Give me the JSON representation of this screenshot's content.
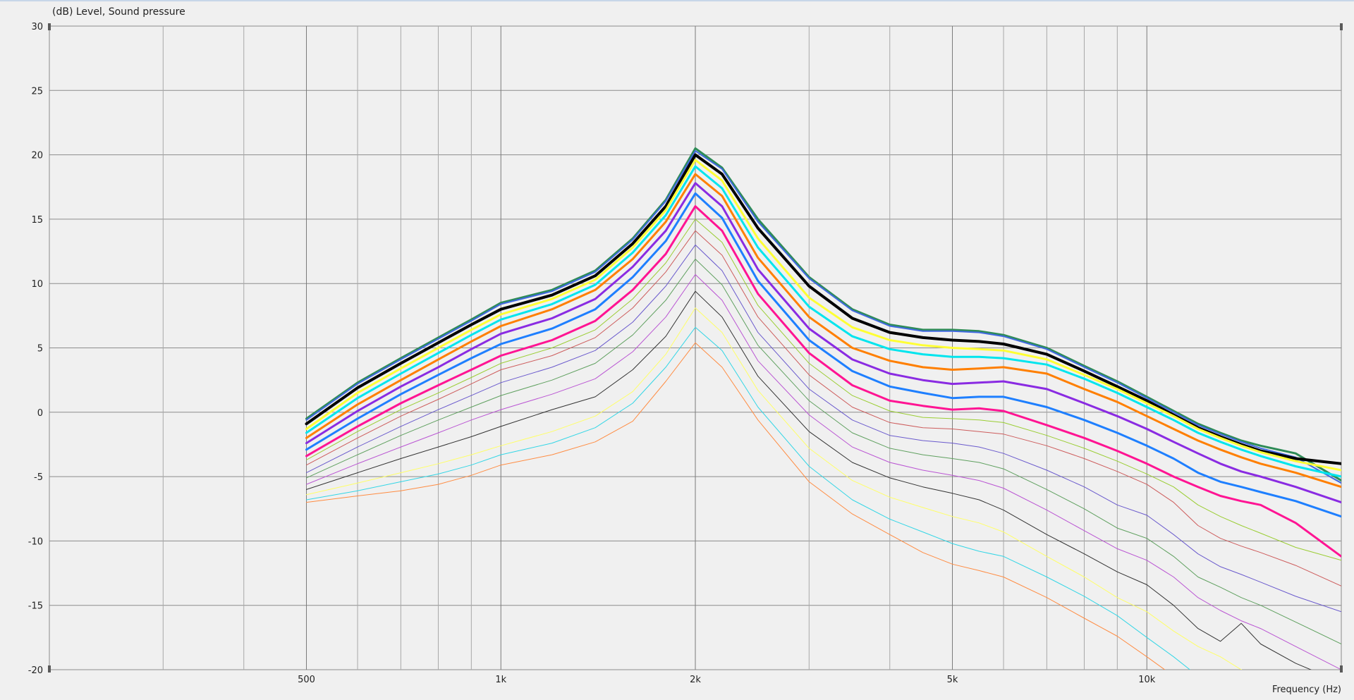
{
  "chart_data": {
    "type": "line",
    "title": "(dB)  Level, Sound pressure",
    "xlabel": "Frequency  (Hz)",
    "ylabel": "(dB)  Level, Sound pressure",
    "x_scale": "log",
    "xlim": [
      200,
      20000
    ],
    "ylim": [
      -20,
      30
    ],
    "y_ticks": [
      30,
      25,
      20,
      15,
      10,
      5,
      0,
      -5,
      -10,
      -15,
      -20
    ],
    "y_tick_labels": [
      "30",
      "25",
      "20",
      "15",
      "10",
      "5",
      "0",
      "-5",
      "-10",
      "-15",
      "-20"
    ],
    "x_major_ticks": [
      500,
      1000,
      2000,
      5000,
      10000
    ],
    "x_tick_labels": [
      "500",
      "1k",
      "2k",
      "5k",
      "10k"
    ],
    "x_minor_ticks": [
      300,
      400,
      600,
      700,
      800,
      900,
      3000,
      4000,
      6000,
      7000,
      8000,
      9000
    ],
    "grid": true,
    "x": [
      500,
      600,
      700,
      800,
      900,
      1000,
      1200,
      1400,
      1600,
      1800,
      2000,
      2200,
      2500,
      3000,
      3500,
      4000,
      4500,
      5000,
      5500,
      6000,
      7000,
      8000,
      9000,
      10000,
      11000,
      12000,
      13000,
      14000,
      15000,
      17000,
      20000
    ],
    "series": [
      {
        "color": "#2e8b57",
        "width": 3,
        "values": [
          -0.5,
          2.3,
          4.2,
          5.8,
          7.2,
          8.5,
          9.5,
          11.0,
          13.5,
          16.5,
          20.5,
          19.0,
          15.0,
          10.5,
          8.0,
          6.8,
          6.4,
          6.4,
          6.3,
          6.0,
          5.0,
          3.6,
          2.4,
          1.2,
          0.1,
          -0.9,
          -1.6,
          -2.2,
          -2.6,
          -3.2,
          -5.3
        ]
      },
      {
        "color": "#4169e1",
        "width": 2,
        "values": [
          -0.6,
          2.2,
          4.1,
          5.7,
          7.1,
          8.4,
          9.4,
          10.9,
          13.4,
          16.4,
          20.3,
          18.9,
          14.8,
          10.4,
          7.9,
          6.7,
          6.3,
          6.3,
          6.2,
          5.9,
          4.9,
          3.5,
          2.3,
          1.1,
          0.0,
          -1.0,
          -1.7,
          -2.3,
          -2.8,
          -3.5,
          -5.5
        ]
      },
      {
        "color": "#000000",
        "width": 4,
        "values": [
          -0.9,
          1.9,
          3.8,
          5.4,
          6.8,
          8.0,
          9.1,
          10.6,
          13.1,
          16.0,
          20.0,
          18.5,
          14.3,
          9.8,
          7.3,
          6.2,
          5.8,
          5.6,
          5.5,
          5.3,
          4.5,
          3.2,
          2.0,
          0.9,
          -0.2,
          -1.2,
          -1.9,
          -2.5,
          -3.0,
          -3.6,
          -4.0
        ]
      },
      {
        "color": "#ffff33",
        "width": 3,
        "values": [
          -1.3,
          1.5,
          3.4,
          5.0,
          6.4,
          7.6,
          8.8,
          10.3,
          12.8,
          15.7,
          19.6,
          18.0,
          13.5,
          8.9,
          6.6,
          5.6,
          5.2,
          5.0,
          4.9,
          4.8,
          4.1,
          2.9,
          1.8,
          0.7,
          -0.3,
          -1.3,
          -2.0,
          -2.6,
          -3.1,
          -3.8,
          -4.5
        ]
      },
      {
        "color": "#00e5ee",
        "width": 3,
        "values": [
          -1.6,
          1.1,
          3.0,
          4.6,
          6.0,
          7.2,
          8.4,
          9.9,
          12.4,
          15.3,
          19.1,
          17.4,
          12.8,
          8.2,
          5.9,
          4.9,
          4.5,
          4.3,
          4.3,
          4.2,
          3.7,
          2.6,
          1.5,
          0.4,
          -0.6,
          -1.6,
          -2.3,
          -2.9,
          -3.4,
          -4.2,
          -5.0
        ]
      },
      {
        "color": "#ff7f00",
        "width": 3,
        "values": [
          -2.0,
          0.6,
          2.5,
          4.1,
          5.5,
          6.7,
          8.0,
          9.5,
          11.9,
          14.8,
          18.5,
          16.8,
          12.0,
          7.4,
          5.0,
          4.0,
          3.5,
          3.3,
          3.4,
          3.5,
          3.0,
          1.8,
          0.8,
          -0.3,
          -1.3,
          -2.2,
          -2.9,
          -3.5,
          -4.0,
          -4.7,
          -5.8
        ]
      },
      {
        "color": "#8a2be2",
        "width": 3,
        "values": [
          -2.4,
          0.1,
          2.0,
          3.5,
          4.9,
          6.1,
          7.3,
          8.8,
          11.3,
          14.1,
          17.8,
          16.0,
          11.1,
          6.5,
          4.1,
          3.0,
          2.5,
          2.2,
          2.3,
          2.4,
          1.8,
          0.7,
          -0.3,
          -1.3,
          -2.3,
          -3.2,
          -4.0,
          -4.6,
          -5.0,
          -5.8,
          -7.0
        ]
      },
      {
        "color": "#1e7fff",
        "width": 3,
        "values": [
          -2.9,
          -0.5,
          1.4,
          2.9,
          4.2,
          5.3,
          6.5,
          8.0,
          10.5,
          13.3,
          17.0,
          15.1,
          10.2,
          5.6,
          3.2,
          2.0,
          1.5,
          1.1,
          1.2,
          1.2,
          0.4,
          -0.6,
          -1.6,
          -2.6,
          -3.6,
          -4.7,
          -5.4,
          -5.8,
          -6.2,
          -6.9,
          -8.1
        ]
      },
      {
        "color": "#ff1493",
        "width": 3,
        "values": [
          -3.4,
          -1.1,
          0.7,
          2.1,
          3.3,
          4.4,
          5.6,
          7.1,
          9.5,
          12.3,
          16.0,
          14.1,
          9.2,
          4.6,
          2.1,
          0.9,
          0.5,
          0.2,
          0.3,
          0.1,
          -1.0,
          -2.0,
          -3.0,
          -4.0,
          -5.0,
          -5.8,
          -6.5,
          -6.9,
          -7.2,
          -8.6,
          -11.2
        ]
      },
      {
        "color": "#9acd32",
        "width": 1,
        "values": [
          -3.7,
          -1.5,
          0.2,
          1.5,
          2.7,
          3.8,
          5.0,
          6.4,
          8.8,
          11.6,
          15.0,
          13.2,
          8.3,
          3.8,
          1.3,
          0.1,
          -0.4,
          -0.5,
          -0.6,
          -0.8,
          -1.8,
          -2.8,
          -3.8,
          -4.8,
          -5.8,
          -7.2,
          -8.1,
          -8.8,
          -9.4,
          -10.5,
          -11.5
        ]
      },
      {
        "color": "#cd5c5c",
        "width": 1,
        "values": [
          -4.1,
          -2.0,
          -0.3,
          1.0,
          2.2,
          3.3,
          4.4,
          5.8,
          8.1,
          10.9,
          14.1,
          12.2,
          7.4,
          2.9,
          0.4,
          -0.8,
          -1.2,
          -1.3,
          -1.5,
          -1.7,
          -2.6,
          -3.6,
          -4.6,
          -5.6,
          -7.0,
          -8.8,
          -9.8,
          -10.4,
          -10.9,
          -11.9,
          -13.5
        ]
      },
      {
        "color": "#6a5acd",
        "width": 1,
        "values": [
          -4.7,
          -2.7,
          -1.1,
          0.2,
          1.3,
          2.3,
          3.5,
          4.8,
          7.0,
          9.8,
          13.0,
          11.0,
          6.2,
          1.8,
          -0.6,
          -1.8,
          -2.2,
          -2.4,
          -2.7,
          -3.2,
          -4.5,
          -5.8,
          -7.2,
          -8.0,
          -9.5,
          -11.0,
          -12.0,
          -12.6,
          -13.2,
          -14.3,
          -15.5
        ]
      },
      {
        "color": "#5fa05f",
        "width": 1,
        "values": [
          -5.1,
          -3.3,
          -1.8,
          -0.6,
          0.4,
          1.3,
          2.5,
          3.8,
          6.0,
          8.7,
          11.9,
          9.9,
          5.2,
          0.9,
          -1.6,
          -2.8,
          -3.3,
          -3.6,
          -3.9,
          -4.4,
          -6.0,
          -7.5,
          -9.0,
          -9.8,
          -11.2,
          -12.8,
          -13.6,
          -14.4,
          -15.0,
          -16.3,
          -18.0
        ]
      },
      {
        "color": "#ba55d3",
        "width": 1,
        "values": [
          -5.6,
          -4.0,
          -2.7,
          -1.6,
          -0.6,
          0.2,
          1.4,
          2.6,
          4.7,
          7.4,
          10.7,
          8.7,
          4.0,
          -0.2,
          -2.7,
          -3.9,
          -4.5,
          -4.9,
          -5.3,
          -5.9,
          -7.6,
          -9.2,
          -10.6,
          -11.5,
          -12.8,
          -14.4,
          -15.4,
          -16.2,
          -16.8,
          -18.2,
          -20.0
        ]
      },
      {
        "color": "#333333",
        "width": 1,
        "values": [
          -6.0,
          -4.7,
          -3.6,
          -2.7,
          -1.9,
          -1.1,
          0.2,
          1.2,
          3.3,
          5.9,
          9.4,
          7.4,
          2.8,
          -1.5,
          -3.9,
          -5.1,
          -5.8,
          -6.3,
          -6.8,
          -7.6,
          -9.5,
          -11.0,
          -12.4,
          -13.4,
          -15.0,
          -16.8,
          -17.8,
          -16.4,
          -18.0,
          -19.5,
          -21.0
        ]
      },
      {
        "color": "#ffff66",
        "width": 1,
        "values": [
          -6.4,
          -5.5,
          -4.7,
          -4.0,
          -3.3,
          -2.6,
          -1.5,
          -0.3,
          1.6,
          4.5,
          8.1,
          6.2,
          1.7,
          -2.8,
          -5.3,
          -6.6,
          -7.4,
          -8.1,
          -8.6,
          -9.3,
          -11.2,
          -12.8,
          -14.4,
          -15.5,
          -17.0,
          -18.2,
          -19.0,
          -20.0,
          -20.5,
          -21.0,
          -21.0
        ]
      },
      {
        "color": "#33d6e6",
        "width": 1,
        "values": [
          -6.8,
          -6.1,
          -5.4,
          -4.8,
          -4.1,
          -3.3,
          -2.4,
          -1.2,
          0.7,
          3.5,
          6.6,
          4.8,
          0.4,
          -4.2,
          -6.8,
          -8.3,
          -9.3,
          -10.2,
          -10.8,
          -11.2,
          -12.8,
          -14.3,
          -15.8,
          -17.5,
          -19.0,
          -20.5,
          -21.0,
          -21.0,
          -21.0,
          -21.0,
          -21.0
        ]
      },
      {
        "color": "#ff8c42",
        "width": 1,
        "values": [
          -7.0,
          -6.5,
          -6.1,
          -5.6,
          -4.9,
          -4.1,
          -3.3,
          -2.3,
          -0.7,
          2.4,
          5.4,
          3.5,
          -0.6,
          -5.4,
          -7.9,
          -9.5,
          -10.9,
          -11.8,
          -12.3,
          -12.8,
          -14.4,
          -16.0,
          -17.4,
          -19.0,
          -20.5,
          -21.0,
          -21.0,
          -21.0,
          -21.0,
          -21.0,
          -21.0
        ]
      }
    ]
  }
}
